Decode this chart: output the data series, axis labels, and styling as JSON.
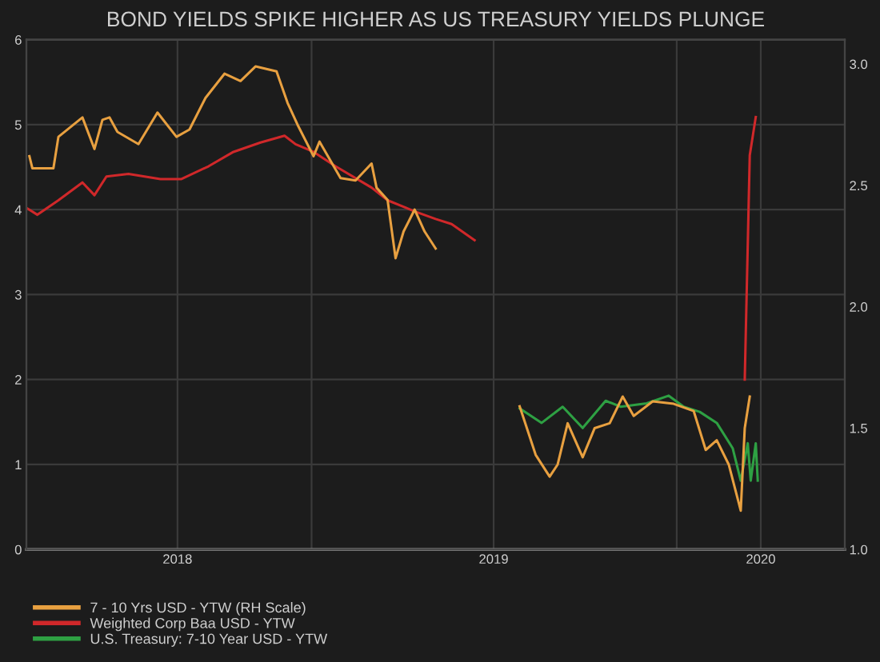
{
  "chart_data": {
    "type": "line",
    "title": "BOND YIELDS SPIKE HIGHER AS US TREASURY YIELDS PLUNGE",
    "xlim": [
      "2018-03-22",
      "2020-06-17"
    ],
    "xticks": [
      {
        "value": "2018-08-20",
        "label": "2018"
      },
      {
        "value": "2019-01-01",
        "label": null
      },
      {
        "value": "2019-07-02",
        "label": "2019"
      },
      {
        "value": "2020-01-01",
        "label": null
      },
      {
        "value": "2020-03-25",
        "label": "2020"
      }
    ],
    "ylim": [
      0,
      6
    ],
    "yticks": [
      0,
      1,
      2,
      3,
      4,
      5,
      6
    ],
    "y2lim": [
      1.0,
      3.1
    ],
    "y2ticks": [
      {
        "value": 1.0,
        "label": "1.0"
      },
      {
        "value": 1.5,
        "label": "1.5"
      },
      {
        "value": 2.0,
        "label": "2.0"
      },
      {
        "value": 2.5,
        "label": "2.5"
      },
      {
        "value": 3.0,
        "label": "3.0"
      }
    ],
    "grid": true,
    "legend": "bottom",
    "line_style": "solid",
    "marker": "none",
    "series": [
      {
        "name": "7 - 10 Yrs USD - YTW (RH Scale)",
        "color": "#e8a040",
        "axis": "y2",
        "x": [
          "2018-03-25",
          "2018-03-28",
          "2018-04-18",
          "2018-04-23",
          "2018-05-17",
          "2018-05-29",
          "2018-06-06",
          "2018-06-13",
          "2018-06-21",
          "2018-07-12",
          "2018-07-31",
          "2018-08-19",
          "2018-09-01",
          "2018-09-17",
          "2018-10-06",
          "2018-10-22",
          "2018-11-06",
          "2018-11-27",
          "2018-12-08",
          "2018-12-18",
          "2019-01-03",
          "2019-01-09",
          "2019-01-30",
          "2019-02-14",
          "2019-03-02",
          "2019-03-07",
          "2019-03-18",
          "2019-03-26",
          "2019-04-03",
          "2019-04-14",
          "2019-04-24",
          "2019-05-05",
          "2019-05-20",
          "2019-07-28",
          "2019-08-13",
          "2019-08-27",
          "2019-09-04",
          "2019-09-14",
          "2019-09-29",
          "2019-10-11",
          "2019-10-26",
          "2019-11-08",
          "2019-11-19",
          "2019-12-08",
          "2019-12-29",
          "2020-01-18",
          "2020-01-30",
          "2020-02-10",
          "2020-02-22",
          "2020-03-05",
          "2020-03-09",
          "2020-03-14"
        ],
        "values": [
          2.62,
          2.57,
          2.57,
          2.7,
          2.78,
          2.65,
          2.77,
          2.78,
          2.72,
          2.67,
          2.8,
          2.7,
          2.73,
          2.86,
          2.96,
          2.93,
          2.99,
          2.97,
          2.84,
          2.75,
          2.62,
          2.68,
          2.53,
          2.52,
          2.59,
          2.49,
          2.44,
          2.2,
          2.31,
          2.4,
          2.31,
          2.24,
          null,
          1.59,
          1.39,
          1.3,
          1.35,
          1.52,
          1.38,
          1.5,
          1.52,
          1.63,
          1.55,
          1.61,
          1.6,
          1.57,
          1.41,
          1.45,
          1.35,
          1.16,
          1.5,
          1.63
        ]
      },
      {
        "name": "Weighted Corp Baa USD - YTW",
        "color": "#d0282a",
        "x": [
          "2018-03-22",
          "2018-04-02",
          "2018-04-23",
          "2018-05-17",
          "2018-05-29",
          "2018-06-10",
          "2018-07-02",
          "2018-08-03",
          "2018-08-24",
          "2018-09-20",
          "2018-10-15",
          "2018-11-11",
          "2018-12-05",
          "2018-12-16",
          "2019-01-03",
          "2019-01-25",
          "2019-03-02",
          "2019-03-18",
          "2019-04-14",
          "2019-05-05",
          "2019-05-21",
          "2019-06-13",
          "2019-07-01",
          "2020-03-09",
          "2020-03-14",
          "2020-03-20"
        ],
        "values": [
          4.02,
          3.94,
          4.11,
          4.32,
          4.17,
          4.39,
          4.42,
          4.36,
          4.36,
          4.51,
          4.68,
          4.79,
          4.87,
          4.77,
          4.68,
          4.51,
          4.26,
          4.11,
          3.98,
          3.89,
          3.83,
          3.64,
          null,
          2.0,
          4.64,
          5.09
        ]
      },
      {
        "name": "U.S. Treasury: 7-10 Year USD - YTW",
        "color": "#2ea043",
        "x": [
          "2019-07-28",
          "2019-08-19",
          "2019-09-09",
          "2019-09-29",
          "2019-10-22",
          "2019-11-06",
          "2019-12-02",
          "2019-12-24",
          "2020-01-08",
          "2020-01-24",
          "2020-02-10",
          "2020-02-26",
          "2020-03-05",
          "2020-03-12",
          "2020-03-15",
          "2020-03-20",
          "2020-03-22"
        ],
        "values": [
          1.66,
          1.49,
          1.68,
          1.43,
          1.75,
          1.68,
          1.72,
          1.81,
          1.68,
          1.62,
          1.49,
          1.19,
          0.81,
          1.25,
          0.81,
          1.25,
          0.81
        ]
      }
    ]
  }
}
